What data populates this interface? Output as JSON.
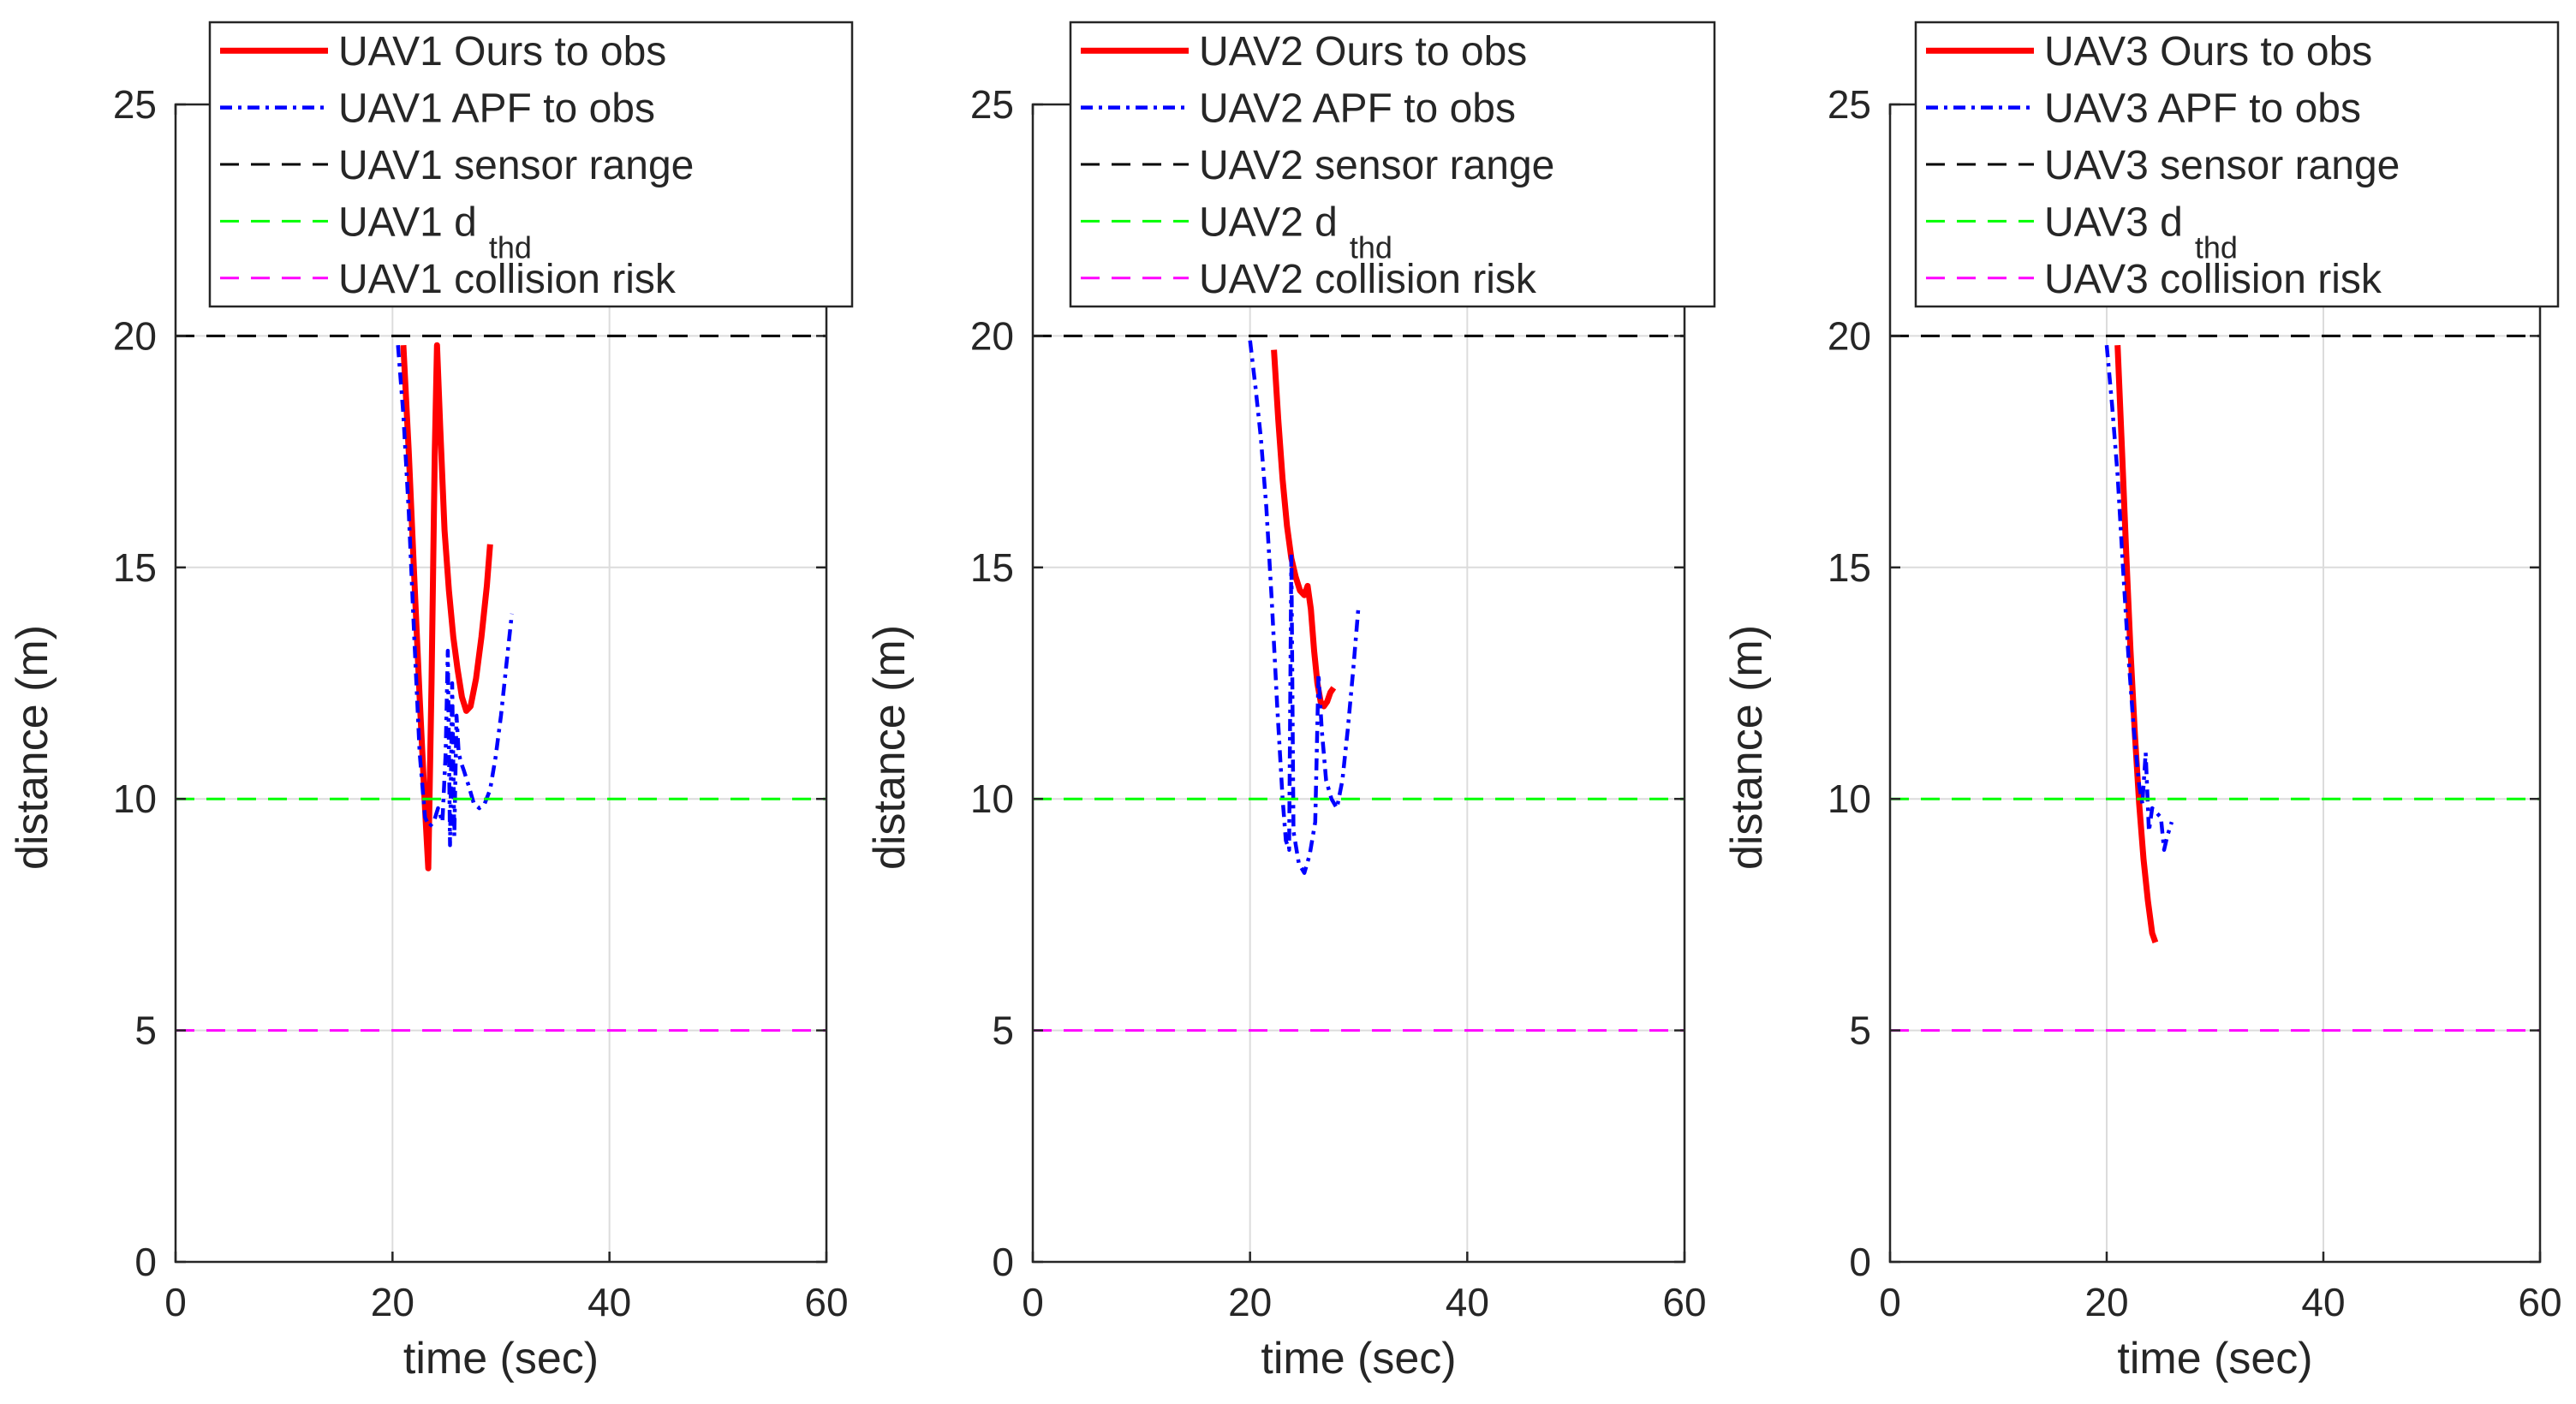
{
  "figure": {
    "panel_count": 3
  },
  "chart_data": [
    {
      "type": "line",
      "xlabel": "time (sec)",
      "ylabel": "distance (m)",
      "xlim": [
        0,
        60
      ],
      "ylim": [
        0,
        25
      ],
      "xticks": [
        "0",
        "20",
        "40",
        "60"
      ],
      "yticks": [
        "0",
        "5",
        "10",
        "15",
        "20",
        "25"
      ],
      "grid": true,
      "legend_position": "top",
      "series": [
        {
          "name": "UAV1 Ours to obs",
          "name_main": "UAV1 Ours to obs",
          "color": "#ff0000",
          "style": "solid",
          "x": [
            21.0,
            21.5,
            22.0,
            22.5,
            23.0,
            23.3,
            23.6,
            23.9,
            24.1,
            24.4,
            24.8,
            25.2,
            25.6,
            26.0,
            26.4,
            26.8,
            27.2,
            27.7,
            28.2,
            28.7,
            29.0
          ],
          "y": [
            19.8,
            17.5,
            14.8,
            12.2,
            9.8,
            8.5,
            12.5,
            17.5,
            19.8,
            18.0,
            15.8,
            14.5,
            13.5,
            12.8,
            12.2,
            11.9,
            12.0,
            12.6,
            13.5,
            14.6,
            15.5
          ]
        },
        {
          "name": "UAV1 APF to obs",
          "name_main": "UAV1 APF to obs",
          "color": "#0000ff",
          "style": "dashdot",
          "x": [
            20.5,
            21.0,
            21.5,
            22.0,
            22.5,
            23.0,
            23.4,
            23.8,
            24.2,
            24.6,
            24.9,
            25.1,
            25.3,
            25.5,
            25.7,
            25.9,
            26.1,
            26.3,
            26.6,
            27.0,
            27.5,
            28.0,
            28.5,
            29.0,
            29.5,
            30.0,
            30.5,
            31.0
          ],
          "y": [
            19.8,
            18.3,
            16.2,
            13.5,
            11.0,
            9.6,
            9.4,
            9.5,
            9.8,
            9.5,
            11.0,
            13.2,
            9.0,
            12.5,
            9.2,
            11.8,
            11.0,
            10.8,
            10.6,
            10.3,
            9.9,
            9.8,
            9.9,
            10.2,
            10.9,
            11.8,
            12.9,
            14.0
          ]
        },
        {
          "name": "UAV1 sensor range",
          "name_main": "UAV1 sensor range",
          "color": "#000000",
          "style": "dashed",
          "y_const": 20
        },
        {
          "name": "UAV1 d thd",
          "name_main": "UAV1 d",
          "name_sub": "thd",
          "color": "#00ff00",
          "style": "dashed",
          "y_const": 10
        },
        {
          "name": "UAV1 collision risk",
          "name_main": "UAV1 collision risk",
          "color": "#ff00ff",
          "style": "dashed",
          "y_const": 5
        }
      ]
    },
    {
      "type": "line",
      "xlabel": "time (sec)",
      "ylabel": "distance (m)",
      "xlim": [
        0,
        60
      ],
      "ylim": [
        0,
        25
      ],
      "xticks": [
        "0",
        "20",
        "40",
        "60"
      ],
      "yticks": [
        "0",
        "5",
        "10",
        "15",
        "20",
        "25"
      ],
      "grid": true,
      "legend_position": "top",
      "series": [
        {
          "name": "UAV2 Ours to obs",
          "name_main": "UAV2 Ours to obs",
          "color": "#ff0000",
          "style": "solid",
          "x": [
            22.2,
            22.6,
            23.0,
            23.4,
            23.8,
            24.2,
            24.6,
            25.0,
            25.3,
            25.6,
            25.9,
            26.2,
            26.5,
            26.8,
            27.1,
            27.4,
            27.7
          ],
          "y": [
            19.7,
            18.2,
            16.9,
            15.9,
            15.2,
            14.8,
            14.5,
            14.4,
            14.6,
            14.1,
            13.2,
            12.5,
            12.1,
            12.0,
            12.1,
            12.3,
            12.4
          ]
        },
        {
          "name": "UAV2 APF to obs",
          "name_main": "UAV2 APF to obs",
          "color": "#0000ff",
          "style": "dashdot",
          "x": [
            20.0,
            20.5,
            21.0,
            21.5,
            22.0,
            22.5,
            23.0,
            23.3,
            23.6,
            23.8,
            24.0,
            24.5,
            25.0,
            25.5,
            26.0,
            26.3,
            26.6,
            27.0,
            27.5,
            28.0,
            28.5,
            29.0,
            29.5,
            30.0
          ],
          "y": [
            19.9,
            18.9,
            17.8,
            16.3,
            14.3,
            12.0,
            10.0,
            9.1,
            8.9,
            15.3,
            9.3,
            8.6,
            8.4,
            8.8,
            9.5,
            12.7,
            11.5,
            10.4,
            10.0,
            9.8,
            10.4,
            11.5,
            12.8,
            14.2
          ]
        },
        {
          "name": "UAV2 sensor range",
          "name_main": "UAV2 sensor range",
          "color": "#000000",
          "style": "dashed",
          "y_const": 20
        },
        {
          "name": "UAV2 d thd",
          "name_main": "UAV2 d",
          "name_sub": "thd",
          "color": "#00ff00",
          "style": "dashed",
          "y_const": 10
        },
        {
          "name": "UAV2 collision risk",
          "name_main": "UAV2 collision risk",
          "color": "#ff00ff",
          "style": "dashed",
          "y_const": 5
        }
      ]
    },
    {
      "type": "line",
      "xlabel": "time (sec)",
      "ylabel": "distance (m)",
      "xlim": [
        0,
        60
      ],
      "ylim": [
        0,
        25
      ],
      "xticks": [
        "0",
        "20",
        "40",
        "60"
      ],
      "yticks": [
        "0",
        "5",
        "10",
        "15",
        "20",
        "25"
      ],
      "grid": true,
      "legend_position": "top",
      "series": [
        {
          "name": "UAV3 Ours to obs",
          "name_main": "UAV3 Ours to obs",
          "color": "#ff0000",
          "style": "solid",
          "x": [
            21.0,
            21.4,
            21.8,
            22.2,
            22.6,
            23.0,
            23.4,
            23.8,
            24.2,
            24.5
          ],
          "y": [
            19.8,
            17.6,
            15.3,
            13.2,
            11.4,
            9.9,
            8.7,
            7.8,
            7.1,
            6.9
          ]
        },
        {
          "name": "UAV3 APF to obs",
          "name_main": "UAV3 APF to obs",
          "color": "#0000ff",
          "style": "dashdot",
          "x": [
            20.0,
            20.5,
            21.0,
            21.5,
            22.0,
            22.5,
            23.0,
            23.3,
            23.6,
            23.9,
            24.2,
            24.6,
            25.0,
            25.3,
            25.6,
            26.0
          ],
          "y": [
            19.8,
            18.5,
            17.0,
            15.0,
            13.1,
            11.5,
            10.3,
            9.9,
            11.0,
            9.3,
            9.8,
            9.7,
            9.6,
            8.9,
            9.2,
            9.5
          ]
        },
        {
          "name": "UAV3 sensor range",
          "name_main": "UAV3 sensor range",
          "color": "#000000",
          "style": "dashed",
          "y_const": 20
        },
        {
          "name": "UAV3 d thd",
          "name_main": "UAV3 d",
          "name_sub": "thd",
          "color": "#00ff00",
          "style": "dashed",
          "y_const": 10
        },
        {
          "name": "UAV3 collision risk",
          "name_main": "UAV3 collision risk",
          "color": "#ff00ff",
          "style": "dashed",
          "y_const": 5
        }
      ]
    }
  ]
}
